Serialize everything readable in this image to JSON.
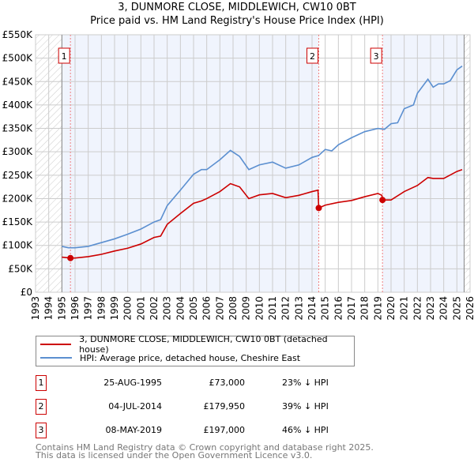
{
  "chart_data": {
    "type": "line",
    "title": "3, DUNMORE CLOSE, MIDDLEWICH, CW10 0BT",
    "subtitle": "Price paid vs. HM Land Registry's House Price Index (HPI)",
    "xlim": [
      1993,
      2026
    ],
    "ylim": [
      0,
      550000
    ],
    "xticks": [
      "1993",
      "1994",
      "1995",
      "1996",
      "1997",
      "1998",
      "1999",
      "2000",
      "2001",
      "2002",
      "2003",
      "2004",
      "2005",
      "2006",
      "2007",
      "2008",
      "2009",
      "2010",
      "2011",
      "2012",
      "2013",
      "2014",
      "2015",
      "2016",
      "2017",
      "2018",
      "2019",
      "2020",
      "2021",
      "2022",
      "2023",
      "2024",
      "2025",
      "2026"
    ],
    "yticks": [
      "£0",
      "£50K",
      "£100K",
      "£150K",
      "£200K",
      "£250K",
      "£300K",
      "£350K",
      "£400K",
      "£450K",
      "£500K",
      "£550K"
    ],
    "grid": true,
    "series": [
      {
        "name": "HPI: Average price, detached house, Cheshire East",
        "color": "#5b8fd0",
        "x": [
          1995,
          1995.5,
          1996,
          1997,
          1998,
          1999,
          2000,
          2001,
          2002,
          2002.5,
          2003,
          2004,
          2005,
          2005.6,
          2006,
          2007,
          2007.8,
          2008.5,
          2009.2,
          2010,
          2011,
          2012,
          2013,
          2014,
          2014.5,
          2015,
          2015.5,
          2016,
          2017,
          2018,
          2019,
          2019.5,
          2020,
          2020.5,
          2021,
          2021.7,
          2022,
          2022.8,
          2023.2,
          2023.6,
          2024,
          2024.5,
          2025,
          2025.4
        ],
        "y": [
          98000,
          95000,
          95000,
          98000,
          106000,
          114000,
          124000,
          135000,
          150000,
          155000,
          185000,
          218000,
          252000,
          262000,
          262000,
          283000,
          303000,
          290000,
          262000,
          272000,
          278000,
          265000,
          272000,
          288000,
          292000,
          305000,
          302000,
          315000,
          330000,
          343000,
          350000,
          348000,
          360000,
          362000,
          392000,
          400000,
          425000,
          455000,
          438000,
          445000,
          445000,
          452000,
          475000,
          483000
        ]
      },
      {
        "name": "3, DUNMORE CLOSE, MIDDLEWICH, CW10 0BT (detached house)",
        "color": "#cc0000",
        "x": [
          1995,
          1995.65,
          1996,
          1997,
          1998,
          1999,
          2000,
          2001,
          2002,
          2002.5,
          2003,
          2004,
          2005,
          2005.6,
          2006,
          2007,
          2007.8,
          2008.5,
          2009.2,
          2010,
          2011,
          2012,
          2013,
          2014,
          2014.45,
          2014.51,
          2015,
          2016,
          2017,
          2018,
          2019,
          2019.3,
          2019.36,
          2020,
          2021,
          2022,
          2022.8,
          2023.2,
          2024,
          2025,
          2025.4
        ],
        "y": [
          75000,
          73000,
          73000,
          76000,
          81000,
          88000,
          94000,
          103000,
          117000,
          120000,
          145000,
          168000,
          190000,
          195000,
          200000,
          215000,
          232000,
          225000,
          200000,
          208000,
          211000,
          202000,
          207000,
          215000,
          218000,
          179950,
          186000,
          192000,
          196000,
          204000,
          211000,
          207000,
          197000,
          197000,
          215000,
          228000,
          245000,
          243000,
          243000,
          258000,
          262000
        ]
      }
    ],
    "sales": [
      {
        "label": "1",
        "x": 1995.65,
        "date": "25-AUG-1995",
        "price": 73000,
        "price_label": "£73,000",
        "hpi": "23% ↓ HPI"
      },
      {
        "label": "2",
        "x": 2014.51,
        "date": "04-JUL-2014",
        "price": 179950,
        "price_label": "£179,950",
        "hpi": "39% ↓ HPI"
      },
      {
        "label": "3",
        "x": 2019.35,
        "date": "08-MAY-2019",
        "price": 197000,
        "price_label": "£197,000",
        "hpi": "46% ↓ HPI"
      }
    ],
    "legend_placement": "below"
  },
  "footer": {
    "line1": "Contains HM Land Registry data © Crown copyright and database right 2025.",
    "line2": "This data is licensed under the Open Government Licence v3.0."
  }
}
